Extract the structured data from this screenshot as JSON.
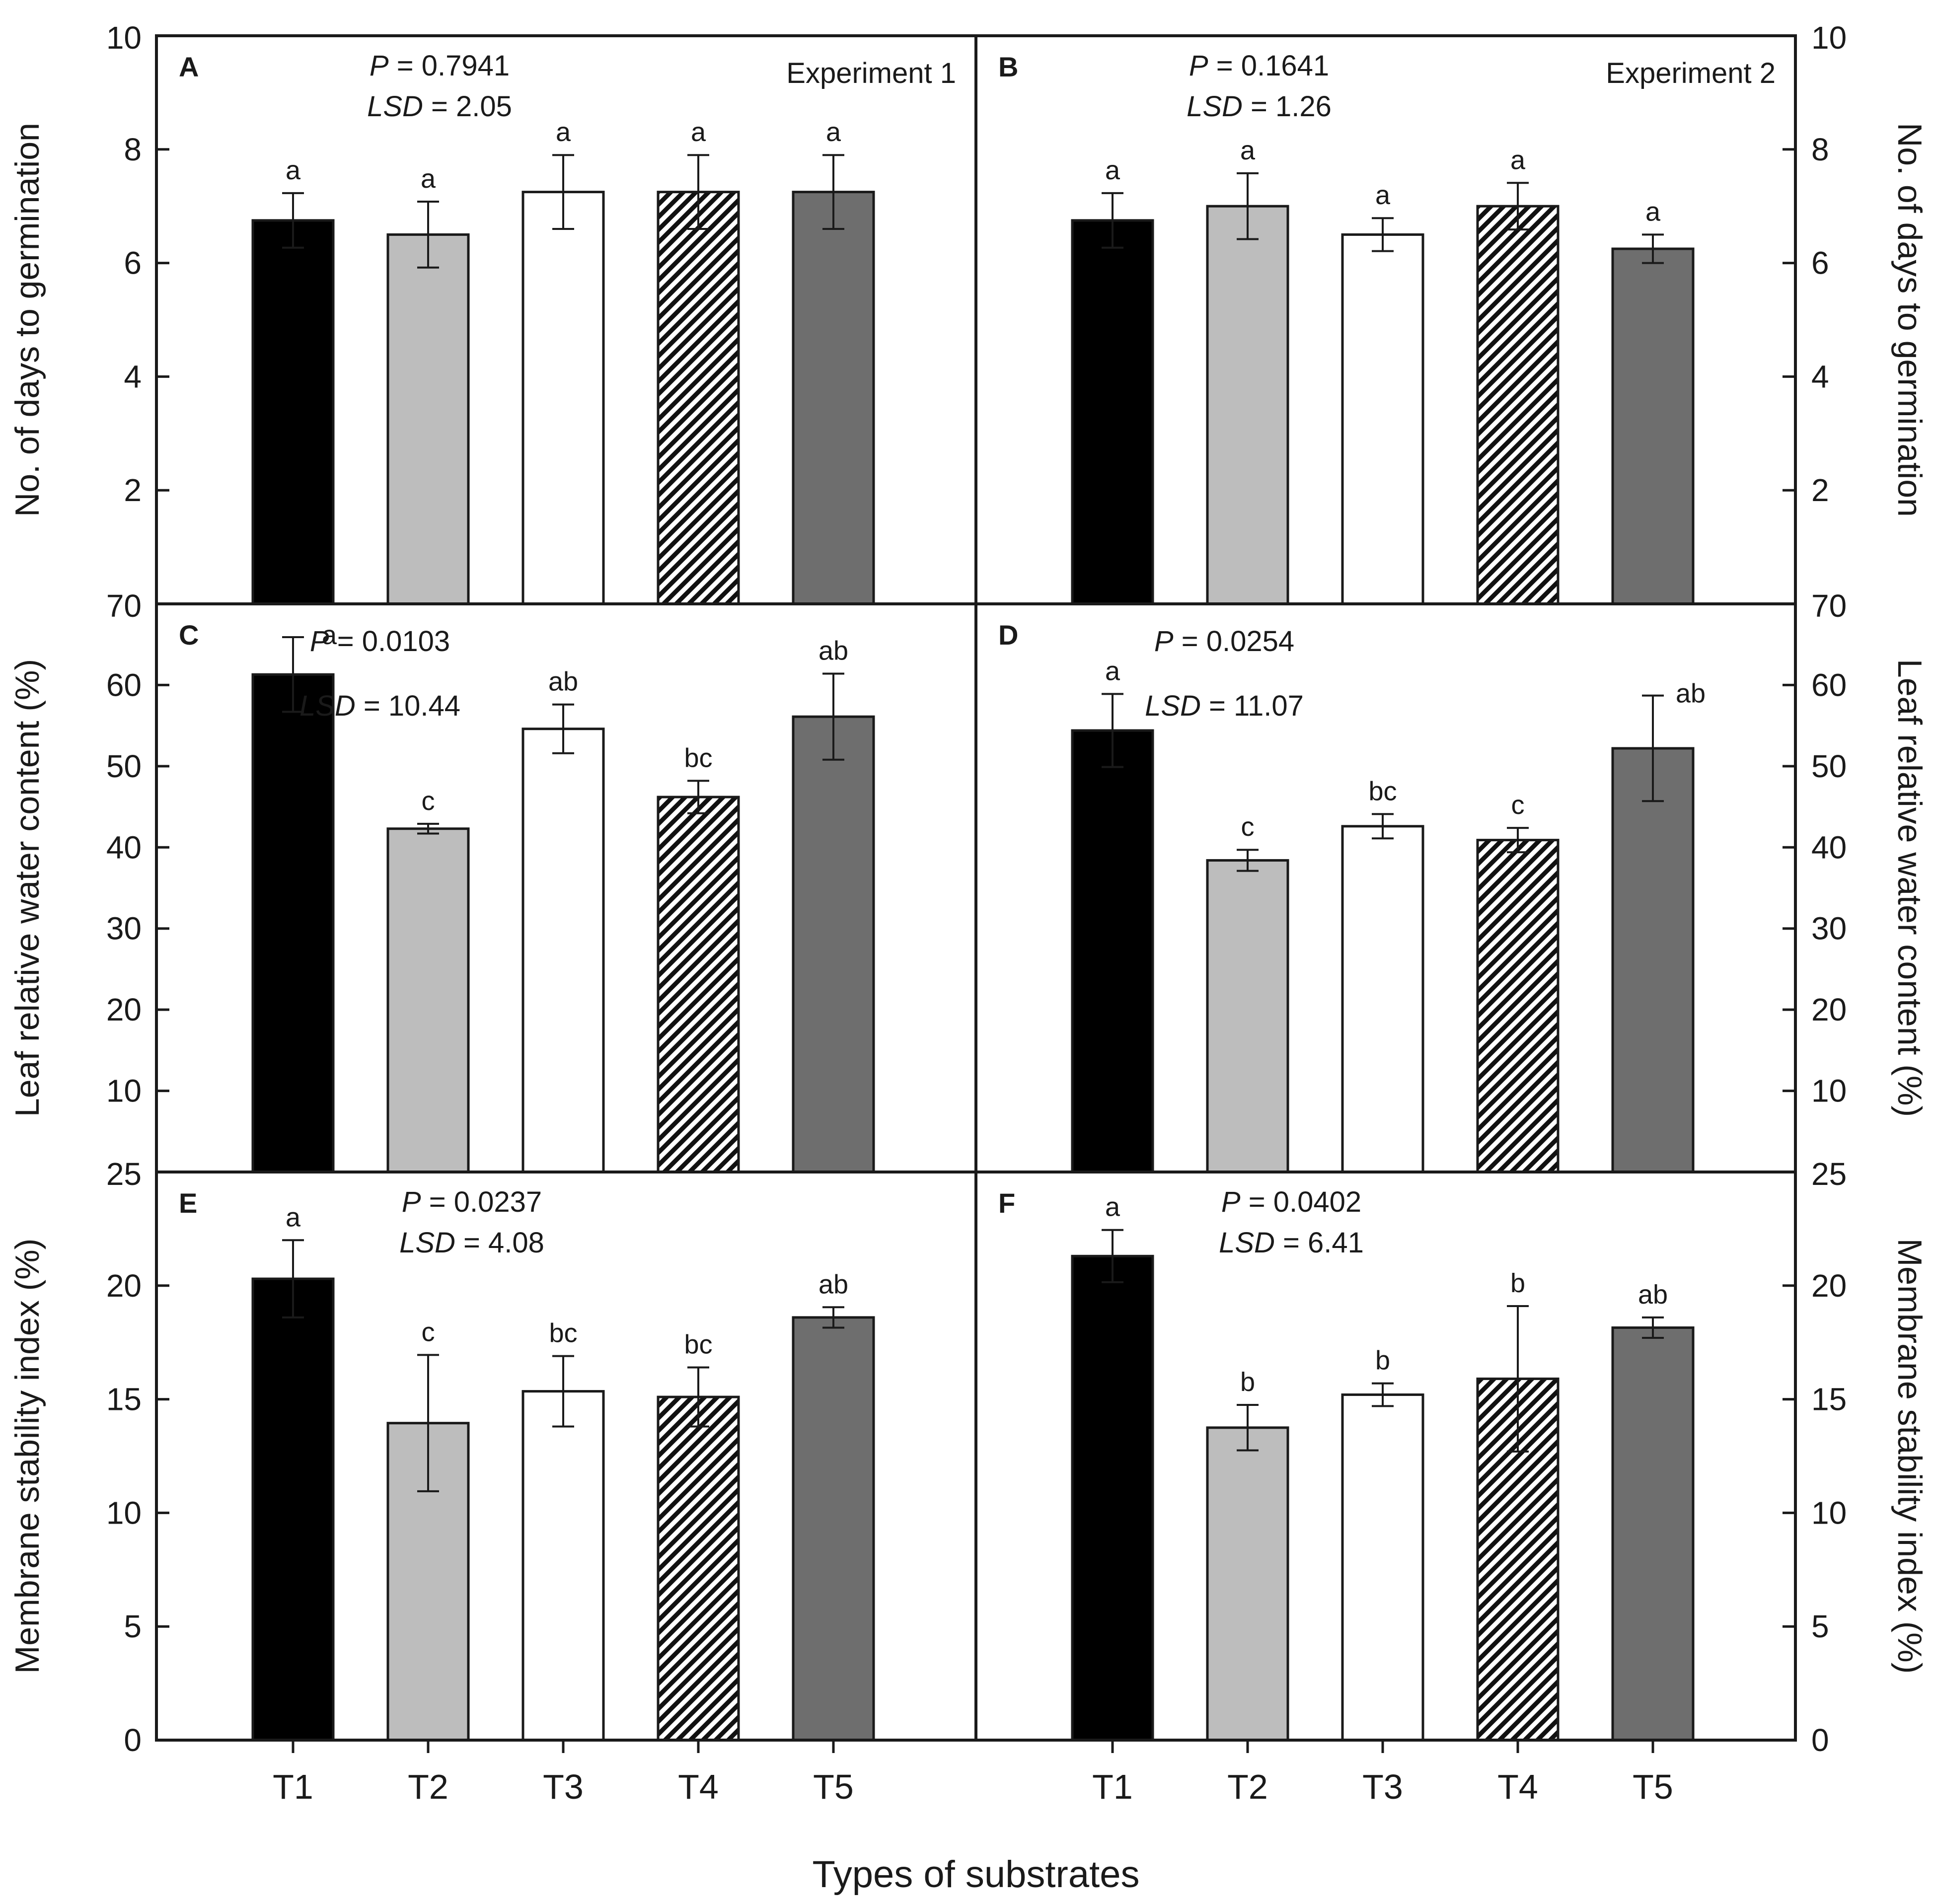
{
  "figure": {
    "xlabel": "Types of substrates",
    "categories": [
      "T1",
      "T2",
      "T3",
      "T4",
      "T5"
    ],
    "bar_styles": [
      {
        "category": "T1",
        "fill": "#000000",
        "pattern": "solid"
      },
      {
        "category": "T2",
        "fill": "#bdbdbd",
        "pattern": "solid"
      },
      {
        "category": "T3",
        "fill": "#ffffff",
        "pattern": "solid"
      },
      {
        "category": "T4",
        "fill": "#ffffff",
        "pattern": "diagonal-hatch"
      },
      {
        "category": "T5",
        "fill": "#6e6e6e",
        "pattern": "solid"
      }
    ]
  },
  "chart_data": [
    {
      "type": "bar",
      "panel": "A",
      "row": 0,
      "col": 0,
      "experiment": "Experiment 1",
      "ylabel": "No. of days to germination",
      "ylim": [
        0,
        10
      ],
      "yticks": [
        2,
        4,
        6,
        8,
        10
      ],
      "stats": {
        "p": "0.7941",
        "lsd": "2.05"
      },
      "categories": [
        "T1",
        "T2",
        "T3",
        "T4",
        "T5"
      ],
      "values": [
        6.75,
        6.5,
        7.25,
        7.25,
        7.25
      ],
      "errors": [
        0.48,
        0.58,
        0.65,
        0.65,
        0.65
      ],
      "letters": [
        "a",
        "a",
        "a",
        "a",
        "a"
      ]
    },
    {
      "type": "bar",
      "panel": "B",
      "row": 0,
      "col": 1,
      "experiment": "Experiment 2",
      "ylabel": "No. of days to germination",
      "ylim": [
        0,
        10
      ],
      "yticks": [
        2,
        4,
        6,
        8,
        10
      ],
      "stats": {
        "p": "0.1641",
        "lsd": "1.26"
      },
      "categories": [
        "T1",
        "T2",
        "T3",
        "T4",
        "T5"
      ],
      "values": [
        6.75,
        7.0,
        6.5,
        7.0,
        6.25
      ],
      "errors": [
        0.48,
        0.58,
        0.29,
        0.41,
        0.25
      ],
      "letters": [
        "a",
        "a",
        "a",
        "a",
        "a"
      ]
    },
    {
      "type": "bar",
      "panel": "C",
      "row": 1,
      "col": 0,
      "ylabel": "Leaf relative water content (%)",
      "ylim": [
        0,
        70
      ],
      "yticks": [
        10,
        20,
        30,
        40,
        50,
        60,
        70
      ],
      "stats": {
        "p": "0.0103",
        "lsd": "10.44"
      },
      "categories": [
        "T1",
        "T2",
        "T3",
        "T4",
        "T5"
      ],
      "values": [
        61.3,
        42.3,
        54.6,
        46.2,
        56.1
      ],
      "errors": [
        4.6,
        0.6,
        3.0,
        2.0,
        5.3
      ],
      "letters": [
        "a",
        "c",
        "ab",
        "bc",
        "ab"
      ]
    },
    {
      "type": "bar",
      "panel": "D",
      "row": 1,
      "col": 1,
      "ylabel": "Leaf relative water content (%)",
      "ylim": [
        0,
        70
      ],
      "yticks": [
        10,
        20,
        30,
        40,
        50,
        60,
        70
      ],
      "stats": {
        "p": "0.0254",
        "lsd": "11.07"
      },
      "categories": [
        "T1",
        "T2",
        "T3",
        "T4",
        "T5"
      ],
      "values": [
        54.4,
        38.4,
        42.6,
        40.9,
        52.2
      ],
      "errors": [
        4.5,
        1.3,
        1.5,
        1.5,
        6.5
      ],
      "letters": [
        "a",
        "c",
        "bc",
        "c",
        "ab"
      ]
    },
    {
      "type": "bar",
      "panel": "E",
      "row": 2,
      "col": 0,
      "ylabel": "Membrane stability index (%)",
      "ylim": [
        0,
        25
      ],
      "yticks": [
        0,
        5,
        10,
        15,
        20,
        25
      ],
      "stats": {
        "p": "0.0237",
        "lsd": "4.08"
      },
      "categories": [
        "T1",
        "T2",
        "T3",
        "T4",
        "T5"
      ],
      "values": [
        20.3,
        13.95,
        15.35,
        15.1,
        18.6
      ],
      "errors": [
        1.7,
        3.0,
        1.55,
        1.3,
        0.45
      ],
      "letters": [
        "a",
        "c",
        "bc",
        "bc",
        "ab"
      ]
    },
    {
      "type": "bar",
      "panel": "F",
      "row": 2,
      "col": 1,
      "ylabel": "Membrane stability index (%)",
      "ylim": [
        0,
        25
      ],
      "yticks": [
        0,
        5,
        10,
        15,
        20,
        25
      ],
      "stats": {
        "p": "0.0402",
        "lsd": "6.41"
      },
      "categories": [
        "T1",
        "T2",
        "T3",
        "T4",
        "T5"
      ],
      "values": [
        21.3,
        13.75,
        15.2,
        15.9,
        18.15
      ],
      "errors": [
        1.15,
        1.0,
        0.5,
        3.2,
        0.45
      ],
      "letters": [
        "a",
        "b",
        "b",
        "b",
        "ab"
      ]
    }
  ]
}
